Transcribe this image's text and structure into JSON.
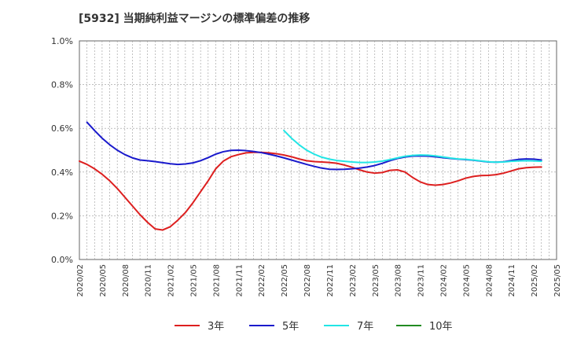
{
  "title": "[5932]  当期純利益マージンの標準偏差の推移",
  "chart_data": {
    "type": "line",
    "title": "[5932]  当期純利益マージンの標準偏差の推移",
    "xlabel": "",
    "ylabel": "",
    "ylim": [
      0,
      1.0
    ],
    "y_ticks": [
      "0.0%",
      "0.2%",
      "0.4%",
      "0.6%",
      "0.8%",
      "1.0%"
    ],
    "x_range": [
      "2020/02",
      "2025/05"
    ],
    "x_ticks": [
      "2020/02",
      "2020/05",
      "2020/08",
      "2020/11",
      "2021/02",
      "2021/05",
      "2021/08",
      "2021/11",
      "2022/02",
      "2022/05",
      "2022/08",
      "2022/11",
      "2023/02",
      "2023/05",
      "2023/08",
      "2023/11",
      "2024/02",
      "2024/05",
      "2024/08",
      "2024/11",
      "2025/02",
      "2025/05"
    ],
    "grid": true,
    "legend_position": "bottom",
    "series": [
      {
        "name": "3年",
        "color": "#dd1f1f",
        "points": [
          [
            "2020/02",
            0.45
          ],
          [
            "2020/03",
            0.435
          ],
          [
            "2020/04",
            0.415
          ],
          [
            "2020/05",
            0.39
          ],
          [
            "2020/06",
            0.36
          ],
          [
            "2020/07",
            0.325
          ],
          [
            "2020/08",
            0.285
          ],
          [
            "2020/09",
            0.245
          ],
          [
            "2020/10",
            0.205
          ],
          [
            "2020/11",
            0.17
          ],
          [
            "2020/12",
            0.14
          ],
          [
            "2021/01",
            0.135
          ],
          [
            "2021/02",
            0.15
          ],
          [
            "2021/03",
            0.18
          ],
          [
            "2021/04",
            0.215
          ],
          [
            "2021/05",
            0.26
          ],
          [
            "2021/06",
            0.31
          ],
          [
            "2021/07",
            0.36
          ],
          [
            "2021/08",
            0.415
          ],
          [
            "2021/09",
            0.45
          ],
          [
            "2021/10",
            0.47
          ],
          [
            "2021/11",
            0.48
          ],
          [
            "2021/12",
            0.488
          ],
          [
            "2022/01",
            0.49
          ],
          [
            "2022/02",
            0.49
          ],
          [
            "2022/03",
            0.488
          ],
          [
            "2022/04",
            0.484
          ],
          [
            "2022/05",
            0.478
          ],
          [
            "2022/06",
            0.47
          ],
          [
            "2022/07",
            0.46
          ],
          [
            "2022/08",
            0.452
          ],
          [
            "2022/09",
            0.448
          ],
          [
            "2022/10",
            0.446
          ],
          [
            "2022/11",
            0.444
          ],
          [
            "2022/12",
            0.44
          ],
          [
            "2023/01",
            0.432
          ],
          [
            "2023/02",
            0.422
          ],
          [
            "2023/03",
            0.41
          ],
          [
            "2023/04",
            0.4
          ],
          [
            "2023/05",
            0.395
          ],
          [
            "2023/06",
            0.398
          ],
          [
            "2023/07",
            0.408
          ],
          [
            "2023/08",
            0.41
          ],
          [
            "2023/09",
            0.4
          ],
          [
            "2023/10",
            0.375
          ],
          [
            "2023/11",
            0.355
          ],
          [
            "2023/12",
            0.343
          ],
          [
            "2024/01",
            0.34
          ],
          [
            "2024/02",
            0.343
          ],
          [
            "2024/03",
            0.35
          ],
          [
            "2024/04",
            0.36
          ],
          [
            "2024/05",
            0.372
          ],
          [
            "2024/06",
            0.38
          ],
          [
            "2024/07",
            0.384
          ],
          [
            "2024/08",
            0.385
          ],
          [
            "2024/09",
            0.388
          ],
          [
            "2024/10",
            0.395
          ],
          [
            "2024/11",
            0.405
          ],
          [
            "2024/12",
            0.415
          ],
          [
            "2025/01",
            0.42
          ],
          [
            "2025/02",
            0.422
          ],
          [
            "2025/03",
            0.423
          ]
        ]
      },
      {
        "name": "5年",
        "color": "#1a1acc",
        "points": [
          [
            "2020/03",
            0.628
          ],
          [
            "2020/04",
            0.59
          ],
          [
            "2020/05",
            0.555
          ],
          [
            "2020/06",
            0.525
          ],
          [
            "2020/07",
            0.5
          ],
          [
            "2020/08",
            0.48
          ],
          [
            "2020/09",
            0.465
          ],
          [
            "2020/10",
            0.455
          ],
          [
            "2020/11",
            0.452
          ],
          [
            "2020/12",
            0.448
          ],
          [
            "2021/01",
            0.443
          ],
          [
            "2021/02",
            0.438
          ],
          [
            "2021/03",
            0.435
          ],
          [
            "2021/04",
            0.437
          ],
          [
            "2021/05",
            0.442
          ],
          [
            "2021/06",
            0.452
          ],
          [
            "2021/07",
            0.466
          ],
          [
            "2021/08",
            0.482
          ],
          [
            "2021/09",
            0.493
          ],
          [
            "2021/10",
            0.499
          ],
          [
            "2021/11",
            0.5
          ],
          [
            "2021/12",
            0.498
          ],
          [
            "2022/01",
            0.494
          ],
          [
            "2022/02",
            0.489
          ],
          [
            "2022/03",
            0.482
          ],
          [
            "2022/04",
            0.474
          ],
          [
            "2022/05",
            0.465
          ],
          [
            "2022/06",
            0.455
          ],
          [
            "2022/07",
            0.445
          ],
          [
            "2022/08",
            0.435
          ],
          [
            "2022/09",
            0.426
          ],
          [
            "2022/10",
            0.418
          ],
          [
            "2022/11",
            0.413
          ],
          [
            "2022/12",
            0.412
          ],
          [
            "2023/01",
            0.413
          ],
          [
            "2023/02",
            0.415
          ],
          [
            "2023/03",
            0.418
          ],
          [
            "2023/04",
            0.423
          ],
          [
            "2023/05",
            0.43
          ],
          [
            "2023/06",
            0.44
          ],
          [
            "2023/07",
            0.452
          ],
          [
            "2023/08",
            0.462
          ],
          [
            "2023/09",
            0.469
          ],
          [
            "2023/10",
            0.473
          ],
          [
            "2023/11",
            0.474
          ],
          [
            "2023/12",
            0.473
          ],
          [
            "2024/01",
            0.47
          ],
          [
            "2024/02",
            0.466
          ],
          [
            "2024/03",
            0.462
          ],
          [
            "2024/04",
            0.459
          ],
          [
            "2024/05",
            0.457
          ],
          [
            "2024/06",
            0.454
          ],
          [
            "2024/07",
            0.45
          ],
          [
            "2024/08",
            0.446
          ],
          [
            "2024/09",
            0.445
          ],
          [
            "2024/10",
            0.447
          ],
          [
            "2024/11",
            0.453
          ],
          [
            "2024/12",
            0.458
          ],
          [
            "2025/01",
            0.46
          ],
          [
            "2025/02",
            0.459
          ],
          [
            "2025/03",
            0.455
          ]
        ]
      },
      {
        "name": "7年",
        "color": "#22e5e5",
        "points": [
          [
            "2022/05",
            0.59
          ],
          [
            "2022/06",
            0.555
          ],
          [
            "2022/07",
            0.525
          ],
          [
            "2022/08",
            0.5
          ],
          [
            "2022/09",
            0.482
          ],
          [
            "2022/10",
            0.468
          ],
          [
            "2022/11",
            0.459
          ],
          [
            "2022/12",
            0.453
          ],
          [
            "2023/01",
            0.449
          ],
          [
            "2023/02",
            0.446
          ],
          [
            "2023/03",
            0.444
          ],
          [
            "2023/04",
            0.444
          ],
          [
            "2023/05",
            0.446
          ],
          [
            "2023/06",
            0.45
          ],
          [
            "2023/07",
            0.457
          ],
          [
            "2023/08",
            0.465
          ],
          [
            "2023/09",
            0.472
          ],
          [
            "2023/10",
            0.476
          ],
          [
            "2023/11",
            0.478
          ],
          [
            "2023/12",
            0.477
          ],
          [
            "2024/01",
            0.474
          ],
          [
            "2024/02",
            0.469
          ],
          [
            "2024/03",
            0.464
          ],
          [
            "2024/04",
            0.46
          ],
          [
            "2024/05",
            0.458
          ],
          [
            "2024/06",
            0.455
          ],
          [
            "2024/07",
            0.451
          ],
          [
            "2024/08",
            0.447
          ],
          [
            "2024/09",
            0.445
          ],
          [
            "2024/10",
            0.446
          ],
          [
            "2024/11",
            0.449
          ],
          [
            "2024/12",
            0.451
          ],
          [
            "2025/01",
            0.452
          ],
          [
            "2025/02",
            0.451
          ],
          [
            "2025/03",
            0.449
          ]
        ]
      },
      {
        "name": "10年",
        "color": "#228b22",
        "points": []
      }
    ]
  }
}
